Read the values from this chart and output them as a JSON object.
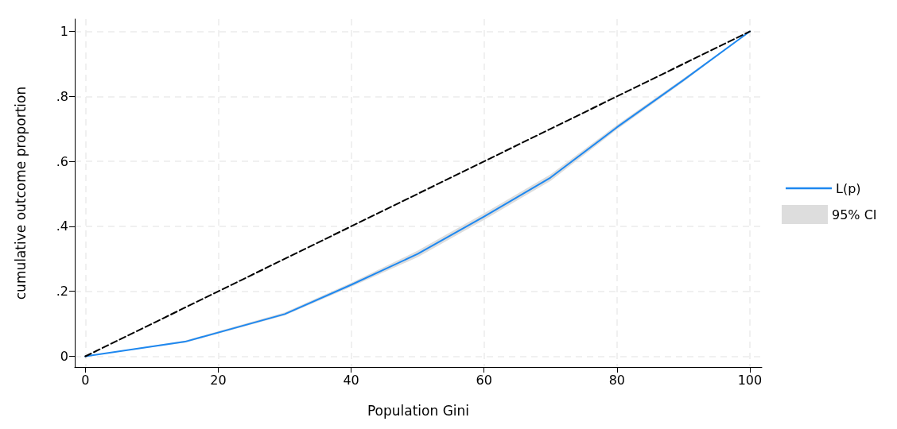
{
  "chart_data": {
    "type": "line",
    "xlabel": "Population Gini",
    "ylabel": "cumulative outcome proportion",
    "xlim": [
      -1.6,
      101.8
    ],
    "ylim": [
      -0.033,
      1.038
    ],
    "xticks": [
      0,
      20,
      40,
      60,
      80,
      100
    ],
    "yticks": [
      0,
      {
        "value": 0.2,
        "label": ".2"
      },
      {
        "value": 0.4,
        "label": ".4"
      },
      {
        "value": 0.6,
        "label": ".6"
      },
      {
        "value": 0.8,
        "label": ".8"
      },
      1
    ],
    "grid": true,
    "legend": "right",
    "marker": "none",
    "annotations": [
      "95% CI"
    ],
    "series": [
      {
        "name": "L(p)",
        "color": "#1e88f0",
        "x": [
          0,
          15,
          30,
          40,
          50,
          60,
          70,
          80,
          90,
          100
        ],
        "values": [
          0,
          0.045,
          0.13,
          0.22,
          0.315,
          0.43,
          0.55,
          0.705,
          0.85,
          1
        ],
        "lower": [
          0,
          0.042,
          0.126,
          0.214,
          0.305,
          0.42,
          0.54,
          0.698,
          0.845,
          1
        ],
        "upper": [
          0,
          0.048,
          0.135,
          0.226,
          0.325,
          0.44,
          0.56,
          0.712,
          0.855,
          1
        ]
      },
      {
        "type": "line",
        "color": "#000000",
        "line_style": "dashed",
        "x": [
          0,
          100
        ],
        "values": [
          0,
          1
        ]
      }
    ]
  }
}
